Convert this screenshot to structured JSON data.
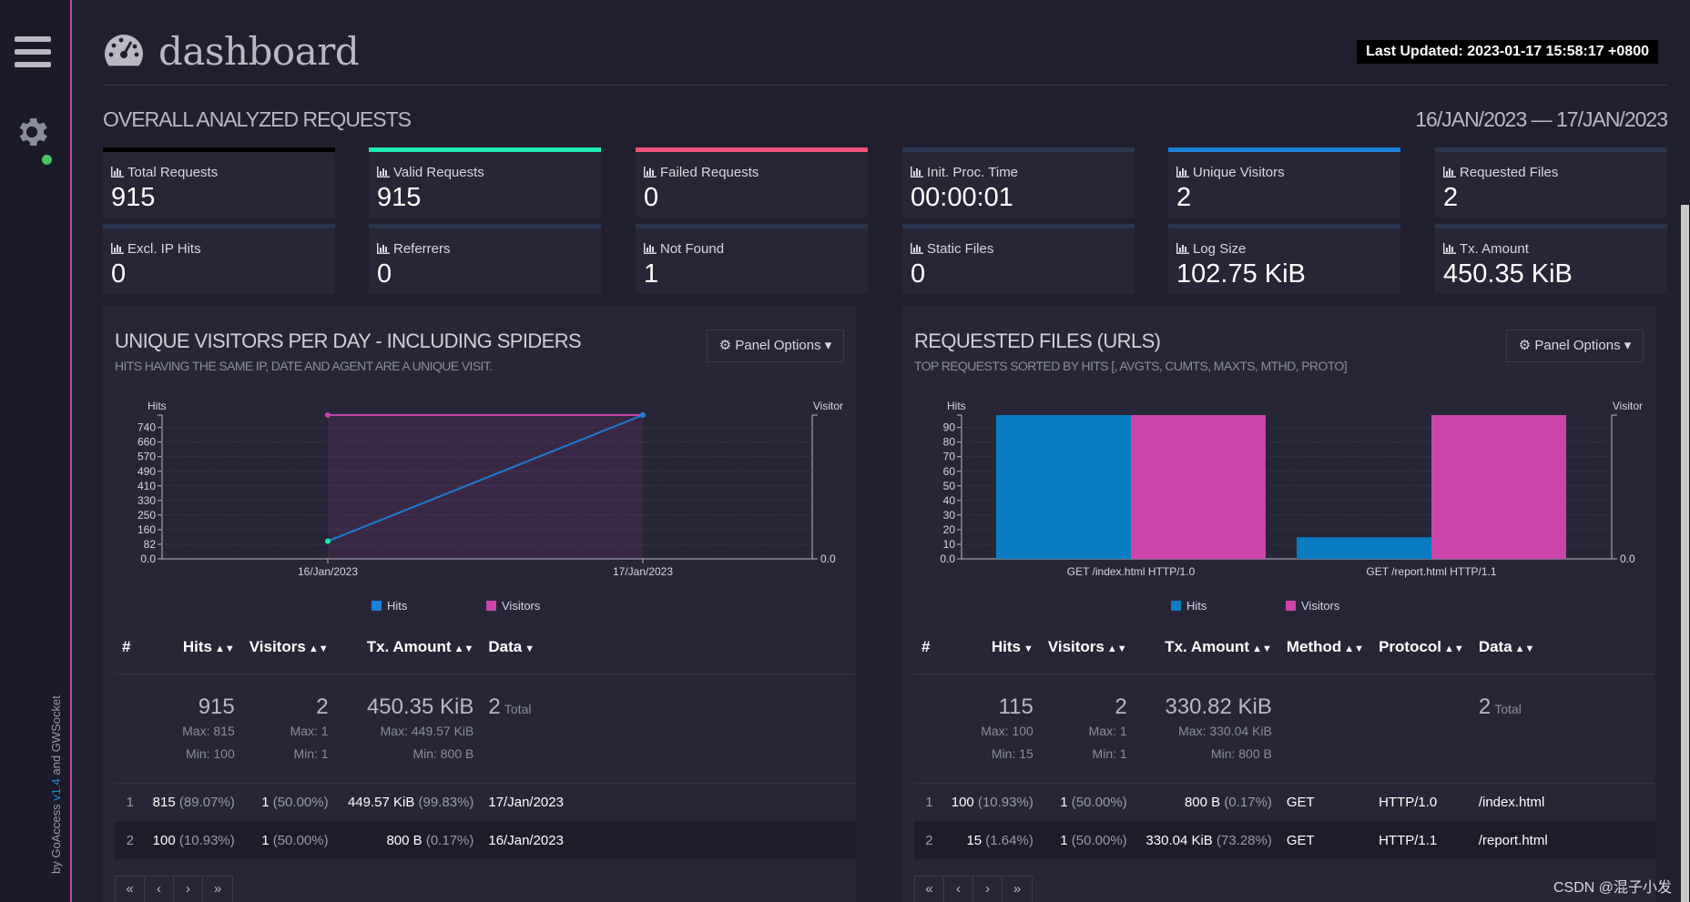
{
  "sidebar": {
    "menu_icon": "hamburger-icon",
    "settings_icon": "gear-icon",
    "credits": {
      "prefix": "by GoAccess ",
      "version": "v1.4",
      "suffix": " and GWSocket"
    }
  },
  "header": {
    "title": "dashboard",
    "last_updated": "Last Updated: 2023-01-17 15:58:17 +0800"
  },
  "overview": {
    "title": "OVERALL ANALYZED REQUESTS",
    "date_range": "16/JAN/2023 — 17/JAN/2023",
    "kpis": [
      {
        "label": "Total Requests",
        "value": "915",
        "accent": "#000000"
      },
      {
        "label": "Valid Requests",
        "value": "915",
        "accent": "#1de9b6"
      },
      {
        "label": "Failed Requests",
        "value": "0",
        "accent": "#f0557b"
      },
      {
        "label": "Init. Proc. Time",
        "value": "00:00:01",
        "accent": "#2b3550"
      },
      {
        "label": "Unique Visitors",
        "value": "2",
        "accent": "#1c7fd8"
      },
      {
        "label": "Requested Files",
        "value": "2",
        "accent": "#2b3550"
      },
      {
        "label": "Excl. IP Hits",
        "value": "0",
        "accent": "#2b3550"
      },
      {
        "label": "Referrers",
        "value": "0",
        "accent": "#2b3550"
      },
      {
        "label": "Not Found",
        "value": "1",
        "accent": "#2b3550"
      },
      {
        "label": "Static Files",
        "value": "0",
        "accent": "#2b3550"
      },
      {
        "label": "Log Size",
        "value": "102.75 KiB",
        "accent": "#2b3550"
      },
      {
        "label": "Tx. Amount",
        "value": "450.35 KiB",
        "accent": "#2b3550"
      }
    ]
  },
  "panels": {
    "visitors": {
      "title": "UNIQUE VISITORS PER DAY - INCLUDING SPIDERS",
      "subtitle": "HITS HAVING THE SAME IP, DATE AND AGENT ARE A UNIQUE VISIT.",
      "options_label": "Panel Options",
      "table": {
        "headers": [
          "#",
          "Hits",
          "Visitors",
          "Tx. Amount",
          "Data"
        ],
        "summary": {
          "hits": "915",
          "hits_max": "Max: 815",
          "hits_min": "Min: 100",
          "visitors": "2",
          "visitors_max": "Max: 1",
          "visitors_min": "Min: 1",
          "tx": "450.35 KiB",
          "tx_max": "Max: 449.57 KiB",
          "tx_min": "Min: 800 B",
          "data_count": "2",
          "data_total": "Total"
        },
        "rows": [
          {
            "idx": "1",
            "hits": "815",
            "hits_pct": "(89.07%)",
            "visitors": "1",
            "visitors_pct": "(50.00%)",
            "tx": "449.57 KiB",
            "tx_pct": "(99.83%)",
            "data": "17/Jan/2023"
          },
          {
            "idx": "2",
            "hits": "100",
            "hits_pct": "(10.93%)",
            "visitors": "1",
            "visitors_pct": "(50.00%)",
            "tx": "800 B",
            "tx_pct": "(0.17%)",
            "data": "16/Jan/2023"
          }
        ]
      }
    },
    "requests": {
      "title": "REQUESTED FILES (URLS)",
      "subtitle": "TOP REQUESTS SORTED BY HITS [, AVGTS, CUMTS, MAXTS, MTHD, PROTO]",
      "options_label": "Panel Options",
      "table": {
        "headers": [
          "#",
          "Hits",
          "Visitors",
          "Tx. Amount",
          "Method",
          "Protocol",
          "Data"
        ],
        "summary": {
          "hits": "115",
          "hits_max": "Max: 100",
          "hits_min": "Min: 15",
          "visitors": "2",
          "visitors_max": "Max: 1",
          "visitors_min": "Min: 1",
          "tx": "330.82 KiB",
          "tx_max": "Max: 330.04 KiB",
          "tx_min": "Min: 800 B",
          "data_count": "2",
          "data_total": "Total"
        },
        "rows": [
          {
            "idx": "1",
            "hits": "100",
            "hits_pct": "(10.93%)",
            "visitors": "1",
            "visitors_pct": "(50.00%)",
            "tx": "800 B",
            "tx_pct": "(0.17%)",
            "method": "GET",
            "protocol": "HTTP/1.0",
            "data": "/index.html"
          },
          {
            "idx": "2",
            "hits": "15",
            "hits_pct": "(1.64%)",
            "visitors": "1",
            "visitors_pct": "(50.00%)",
            "tx": "330.04 KiB",
            "tx_pct": "(73.28%)",
            "method": "GET",
            "protocol": "HTTP/1.1",
            "data": "/report.html"
          }
        ]
      }
    }
  },
  "pager": [
    "«",
    "‹",
    "›",
    "»"
  ],
  "watermark": "CSDN @混子小发",
  "chart_data": [
    {
      "type": "line",
      "title": "Unique Visitors Per Day",
      "categories": [
        "16/Jan/2023",
        "17/Jan/2023"
      ],
      "series": [
        {
          "name": "Hits",
          "values": [
            100,
            815
          ],
          "color": "#1c7fd8"
        },
        {
          "name": "Visitors",
          "values": [
            1,
            1
          ],
          "color": "#cc44aa"
        }
      ],
      "ylabel": "Hits",
      "y2label": "Visitors",
      "yticks": [
        "0.0",
        "82",
        "160",
        "250",
        "330",
        "410",
        "490",
        "570",
        "660",
        "740"
      ],
      "y2ticks": [
        "0.0"
      ],
      "ylim": [
        0,
        815
      ]
    },
    {
      "type": "bar",
      "title": "Requested Files (URLs)",
      "categories": [
        "GET /index.html HTTP/1.0",
        "GET /report.html HTTP/1.1"
      ],
      "series": [
        {
          "name": "Hits",
          "values": [
            100,
            15
          ],
          "color": "#0a7cc4"
        },
        {
          "name": "Visitors",
          "values": [
            1,
            1
          ],
          "color": "#cc44aa"
        }
      ],
      "ylabel": "Hits",
      "y2label": "Visitors",
      "yticks": [
        "0.0",
        "10",
        "20",
        "30",
        "40",
        "50",
        "60",
        "70",
        "80",
        "90"
      ],
      "y2ticks": [
        "0.0"
      ],
      "ylim": [
        0,
        100
      ]
    }
  ]
}
